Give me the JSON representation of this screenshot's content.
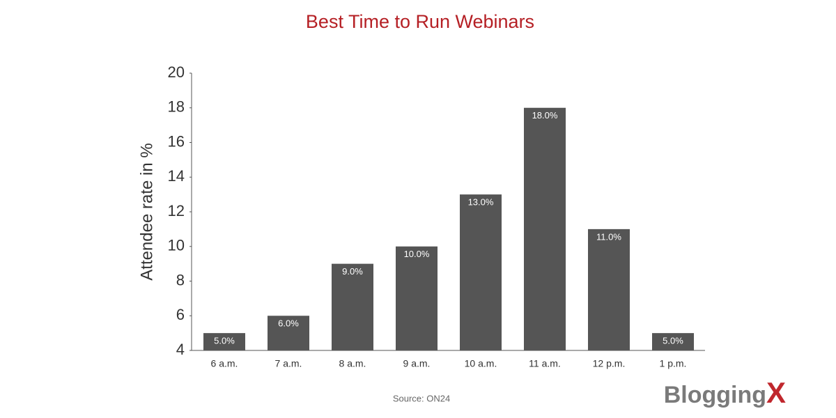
{
  "chart_data": {
    "type": "bar",
    "title": "Best Time to Run Webinars",
    "y_label": "Attendee rate in %",
    "categories": [
      "6 a.m.",
      "7 a.m.",
      "8 a.m.",
      "9 a.m.",
      "10 a.m.",
      "11 a.m.",
      "12 p.m.",
      "1 p.m."
    ],
    "values": [
      5,
      6,
      9,
      10,
      13,
      18,
      11,
      5
    ],
    "value_labels": [
      "5.0%",
      "6.0%",
      "9.0%",
      "10.0%",
      "13.0%",
      "18.0%",
      "11.0%",
      "5.0%"
    ],
    "color": "#555555",
    "ylim": [
      4,
      20
    ],
    "yticks": [
      4,
      6,
      8,
      10,
      12,
      14,
      16,
      18,
      20
    ],
    "grid": false,
    "source": "Source: ON24",
    "logo": {
      "text": "Blogging",
      "mark": "X"
    }
  }
}
